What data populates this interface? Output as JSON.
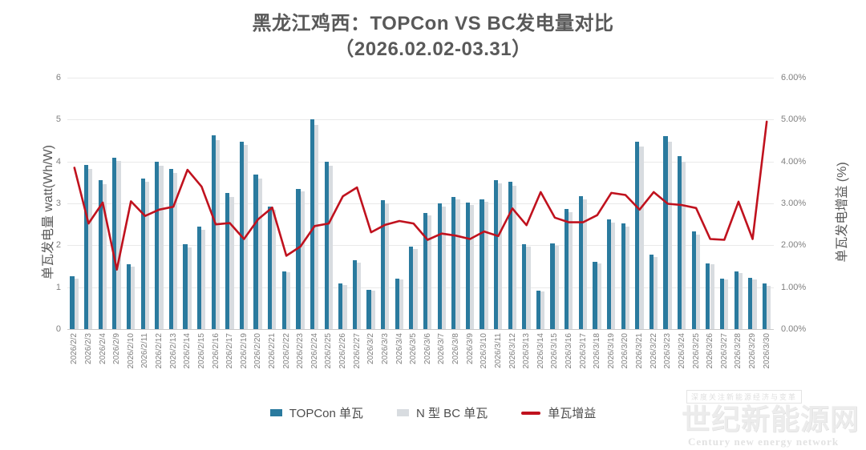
{
  "title": {
    "line1": "黑龙江鸡西：TOPCon VS BC发电量对比",
    "line2": "（2026.02.02-03.31）"
  },
  "chart_data": {
    "type": "bar+line",
    "title": "黑龙江鸡西：TOPCon VS BC发电量对比（2026.02.02-03.31）",
    "grid": true,
    "legend_position": "bottom",
    "left_axis": {
      "title": "单瓦发电量 watt(Wh/W)",
      "min": 0,
      "max": 6,
      "ticks": [
        "0",
        "1",
        "2",
        "3",
        "4",
        "5",
        "6"
      ]
    },
    "right_axis": {
      "title": "单瓦发电增益 (%)",
      "min": 0,
      "max": 6,
      "ticks": [
        "0.00%",
        "1.00%",
        "2.00%",
        "3.00%",
        "4.00%",
        "5.00%",
        "6.00%"
      ]
    },
    "categories": [
      "2026/2/2",
      "2026/2/3",
      "2026/2/4",
      "2026/2/9",
      "2026/2/10",
      "2026/2/11",
      "2026/2/12",
      "2026/2/13",
      "2026/2/14",
      "2026/2/15",
      "2026/2/16",
      "2026/2/17",
      "2026/2/19",
      "2026/2/20",
      "2026/2/21",
      "2026/2/22",
      "2026/2/23",
      "2026/2/24",
      "2026/2/25",
      "2026/2/26",
      "2026/2/27",
      "2026/3/2",
      "2026/3/3",
      "2026/3/4",
      "2026/3/5",
      "2026/3/6",
      "2026/3/7",
      "2026/3/8",
      "2026/3/9",
      "2026/3/10",
      "2026/3/11",
      "2026/3/12",
      "2026/3/13",
      "2026/3/14",
      "2026/3/15",
      "2026/3/16",
      "2026/3/17",
      "2026/3/18",
      "2026/3/19",
      "2026/3/20",
      "2026/3/21",
      "2026/3/22",
      "2026/3/23",
      "2026/3/24",
      "2026/3/25",
      "2026/3/26",
      "2026/3/27",
      "2026/3/28",
      "2026/3/29",
      "2026/3/30"
    ],
    "series": [
      {
        "name": "TOPCon 单瓦",
        "type": "bar",
        "axis": "left",
        "color": "#2a7a9e",
        "values": [
          1.26,
          3.92,
          3.56,
          4.08,
          1.55,
          3.6,
          4.0,
          3.83,
          2.02,
          2.44,
          4.62,
          3.24,
          4.48,
          3.68,
          2.92,
          1.37,
          3.35,
          5.0,
          4.0,
          1.08,
          1.64,
          0.93,
          3.07,
          1.21,
          1.97,
          2.77,
          3.0,
          3.16,
          3.02,
          3.1,
          3.55,
          3.52,
          2.02,
          0.92,
          2.04,
          2.86,
          3.17,
          1.61,
          2.62,
          2.52,
          4.48,
          1.78,
          4.6,
          4.12,
          2.33,
          1.57,
          1.21,
          1.38,
          1.22,
          1.08
        ]
      },
      {
        "name": "N 型 BC 单瓦",
        "type": "bar",
        "axis": "left",
        "color": "#d8dce0",
        "values": [
          1.21,
          3.82,
          3.46,
          4.02,
          1.5,
          3.51,
          3.89,
          3.72,
          1.95,
          2.36,
          4.51,
          3.16,
          4.39,
          3.59,
          2.84,
          1.35,
          3.29,
          4.88,
          3.9,
          1.05,
          1.59,
          0.91,
          3.0,
          1.18,
          1.92,
          2.71,
          2.93,
          3.09,
          2.96,
          3.03,
          3.47,
          3.42,
          1.97,
          0.89,
          1.99,
          2.79,
          3.09,
          1.57,
          2.54,
          2.44,
          4.36,
          1.72,
          4.47,
          4.0,
          2.26,
          1.54,
          1.18,
          1.34,
          1.19,
          1.03
        ]
      },
      {
        "name": "单瓦增益",
        "type": "line",
        "axis": "right",
        "color": "#c0121e",
        "values": [
          3.85,
          2.52,
          3.02,
          1.42,
          3.05,
          2.7,
          2.85,
          2.92,
          3.8,
          3.4,
          2.5,
          2.53,
          2.15,
          2.62,
          2.9,
          1.75,
          1.97,
          2.46,
          2.52,
          3.17,
          3.38,
          2.31,
          2.49,
          2.58,
          2.52,
          2.13,
          2.28,
          2.23,
          2.15,
          2.33,
          2.22,
          2.88,
          2.48,
          3.27,
          2.66,
          2.55,
          2.55,
          2.72,
          3.25,
          3.2,
          2.85,
          3.27,
          2.99,
          2.96,
          2.89,
          2.15,
          2.13,
          3.04,
          2.15,
          4.95
        ]
      }
    ]
  },
  "watermark": {
    "badge": "深度关注新能源经济与变革",
    "name": "世纪新能源网",
    "subtitle": "Century new energy network"
  }
}
